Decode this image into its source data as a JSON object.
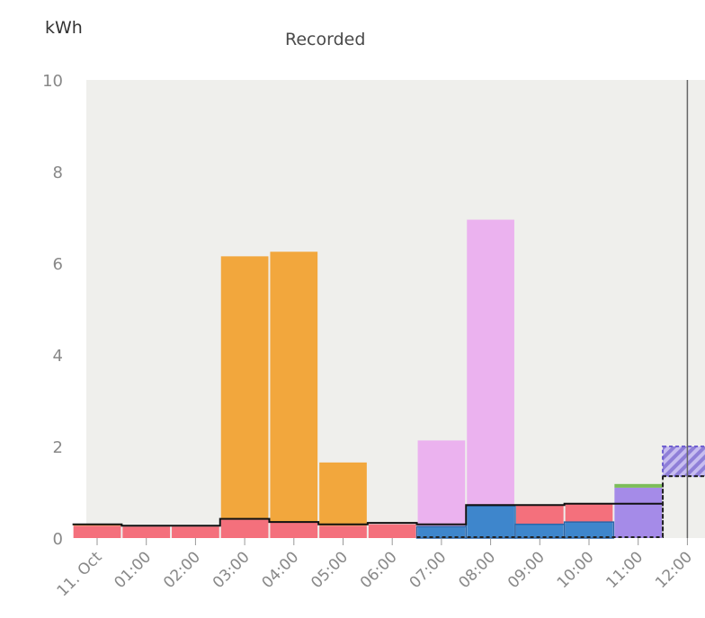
{
  "unit_label": "kWh",
  "title": "Recorded",
  "colors": {
    "orange": "#f2a73d",
    "pink": "#ebb2ef",
    "red": "#f4707c",
    "blue": "#3e86cc",
    "purple": "#a58be8",
    "green": "#7cbd5a",
    "plot_bg": "#efefec",
    "baseline": "#111111",
    "now_line": "#666666"
  },
  "chart_data": {
    "type": "bar",
    "ylim": [
      0,
      10
    ],
    "yticks": [
      "0",
      "2",
      "4",
      "6",
      "8",
      "10"
    ],
    "xticks": [
      "11. Oct",
      "01:00",
      "02:00",
      "03:00",
      "04:00",
      "05:00",
      "06:00",
      "07:00",
      "08:00",
      "09:00",
      "10:00",
      "11:00",
      "12:00"
    ],
    "now_marker": 12,
    "stacks": [
      {
        "hour": 0,
        "segments": [
          {
            "color": "red",
            "value": 0.27
          },
          {
            "color": "orange",
            "value": 0.03
          }
        ]
      },
      {
        "hour": 1,
        "segments": [
          {
            "color": "red",
            "value": 0.25
          }
        ]
      },
      {
        "hour": 2,
        "segments": [
          {
            "color": "red",
            "value": 0.25
          }
        ]
      },
      {
        "hour": 3,
        "segments": [
          {
            "color": "red",
            "value": 0.4
          },
          {
            "color": "orange",
            "value": 5.75
          }
        ]
      },
      {
        "hour": 4,
        "segments": [
          {
            "color": "red",
            "value": 0.35
          },
          {
            "color": "orange",
            "value": 5.9
          }
        ]
      },
      {
        "hour": 5,
        "segments": [
          {
            "color": "red",
            "value": 0.27
          },
          {
            "color": "orange",
            "value": 1.38
          }
        ]
      },
      {
        "hour": 6,
        "segments": [
          {
            "color": "red",
            "value": 0.3
          }
        ]
      },
      {
        "hour": 7,
        "segments": [
          {
            "color": "blue",
            "value": 0.25
          },
          {
            "color": "pink",
            "value": 1.88
          }
        ]
      },
      {
        "hour": 8,
        "segments": [
          {
            "color": "blue",
            "value": 0.7
          },
          {
            "color": "pink",
            "value": 6.25
          }
        ]
      },
      {
        "hour": 9,
        "segments": [
          {
            "color": "blue",
            "value": 0.3
          },
          {
            "color": "red",
            "value": 0.42
          }
        ]
      },
      {
        "hour": 10,
        "segments": [
          {
            "color": "blue",
            "value": 0.35
          },
          {
            "color": "red",
            "value": 0.4
          }
        ]
      },
      {
        "hour": 11,
        "segments": [
          {
            "color": "purple",
            "value": 0.75
          },
          {
            "color": "purple",
            "value": 0.35
          },
          {
            "color": "green",
            "value": 0.08
          }
        ]
      }
    ],
    "baseline_step": [
      0.3,
      0.27,
      0.27,
      0.42,
      0.35,
      0.3,
      0.33,
      0.3,
      0.72,
      0.72,
      0.75,
      0.75
    ],
    "forecast": {
      "hour": 12,
      "low": 1.35,
      "high": 2.0
    }
  }
}
